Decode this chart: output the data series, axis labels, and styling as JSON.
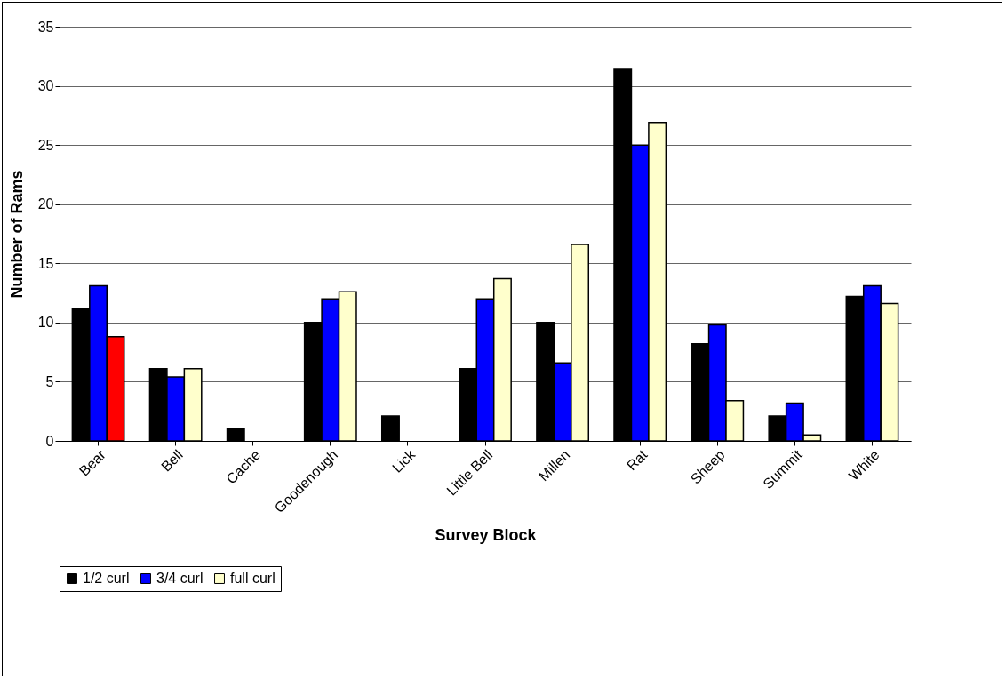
{
  "chart_data": {
    "type": "bar",
    "xlabel": "Survey Block",
    "ylabel": "Number of Rams",
    "categories": [
      "Bear",
      "Bell",
      "Cache",
      "Goodenough",
      "Lick",
      "Little Bell",
      "Millen",
      "Rat",
      "Sheep",
      "Summit",
      "White"
    ],
    "series": [
      {
        "name": "1/2 curl",
        "color": "#000000",
        "values": [
          11.2,
          6.1,
          1,
          10,
          2.1,
          6.1,
          10,
          31.4,
          8.2,
          2.1,
          12.2
        ]
      },
      {
        "name": "3/4 curl",
        "color": "#0000ff",
        "values": [
          13.1,
          5.4,
          null,
          12,
          null,
          12,
          6.6,
          25,
          9.8,
          3.2,
          13.1
        ]
      },
      {
        "name": "full curl",
        "color": "#ffffcc",
        "colors": [
          "#ff0000",
          "#ffffcc",
          "#ffffcc",
          "#ffffcc",
          "#ffffcc",
          "#ffffcc",
          "#ffffcc",
          "#ffffcc",
          "#ffffcc",
          "#ffffcc",
          "#ffffcc"
        ],
        "values": [
          8.8,
          6.1,
          null,
          12.6,
          null,
          13.7,
          16.6,
          26.9,
          3.4,
          0.5,
          11.6
        ]
      }
    ],
    "ylim": [
      0,
      35
    ],
    "yticks": [
      0,
      5,
      10,
      15,
      20,
      25,
      30,
      35
    ],
    "grid": "y",
    "legend": "bottom"
  }
}
